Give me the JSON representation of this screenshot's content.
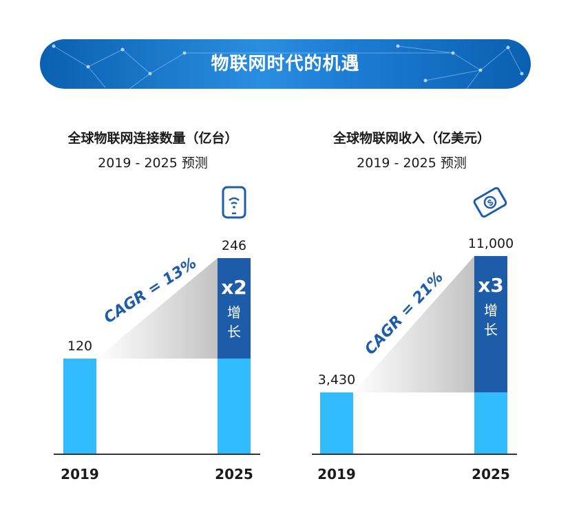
{
  "banner": {
    "title": "物联网时代的机遇"
  },
  "charts": [
    {
      "title": "全球物联网连接数量（亿台）",
      "subtitle": "2019 - 2025 预测",
      "icon": "smartphone-wifi-icon"
    },
    {
      "title": "全球物联网收入（亿美元）",
      "subtitle": "2019 - 2025 预测",
      "icon": "dollar-bill-icon"
    }
  ],
  "colors": {
    "bar": "#33bbff",
    "growth": "#1d5ca8",
    "accent": "#1d5ca8",
    "banner": "#1e7fd6"
  },
  "chart_data": [
    {
      "type": "bar",
      "title": "全球物联网连接数量（亿台）",
      "subtitle": "2019 - 2025 预测",
      "categories": [
        "2019",
        "2025"
      ],
      "values": [
        120,
        246
      ],
      "value_labels": [
        "120",
        "246"
      ],
      "cagr_label": "CAGR = 13%",
      "growth_multiplier": "x2",
      "growth_text": "增长",
      "ylim": [
        0,
        246
      ]
    },
    {
      "type": "bar",
      "title": "全球物联网收入（亿美元）",
      "subtitle": "2019 - 2025 预测",
      "categories": [
        "2019",
        "2025"
      ],
      "values": [
        3430,
        11000
      ],
      "value_labels": [
        "3,430",
        "11,000"
      ],
      "cagr_label": "CAGR = 21%",
      "growth_multiplier": "x3",
      "growth_text": "增长",
      "ylim": [
        0,
        11000
      ]
    }
  ]
}
